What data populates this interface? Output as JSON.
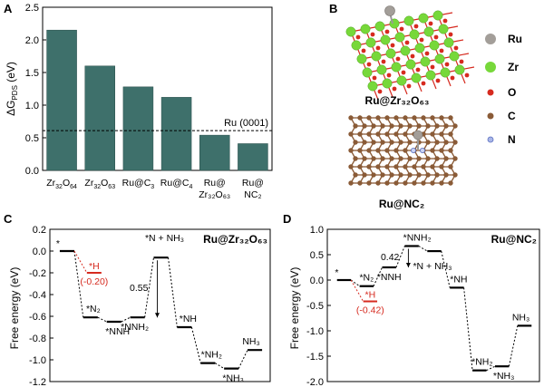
{
  "panels": {
    "A": {
      "label": "A",
      "chart_data": {
        "type": "bar",
        "ylabel_main": "ΔG",
        "ylabel_sub": "PDS",
        "ylabel_unit": " (eV)",
        "ylim": [
          0,
          2.5
        ],
        "yticks": [
          "0.0",
          "0.5",
          "1.0",
          "1.5",
          "2.0",
          "2.5"
        ],
        "bar_color": "#3e706b",
        "categories": [
          {
            "line1": "Zr",
            "s1": "32",
            "m1": "O",
            "s2": "64",
            "line2": ""
          },
          {
            "line1": "Zr",
            "s1": "32",
            "m1": "O",
            "s2": "63",
            "line2": ""
          },
          {
            "line1": "Ru@C",
            "s1": "3",
            "m1": "",
            "s2": "",
            "line2": ""
          },
          {
            "line1": "Ru@C",
            "s1": "4",
            "m1": "",
            "s2": "",
            "line2": ""
          },
          {
            "line1": "Ru@",
            "s1": "",
            "m1": "",
            "s2": "",
            "line2": "Zr₃₂O₆₃"
          },
          {
            "line1": "Ru@",
            "s1": "",
            "m1": "",
            "s2": "",
            "line2": "NC₂"
          }
        ],
        "values": [
          2.15,
          1.6,
          1.28,
          1.12,
          0.54,
          0.41
        ],
        "reference_line": {
          "value": 0.61,
          "label": "Ru (0001)"
        }
      }
    },
    "B": {
      "label": "B",
      "structure_top_label": "Ru@Zr₃₂O₆₃",
      "structure_bottom_label": "Ru@NC₂",
      "legend": [
        {
          "name": "Ru",
          "color": "#a39e99"
        },
        {
          "name": "Zr",
          "color": "#77d83a"
        },
        {
          "name": "O",
          "color": "#d62a1f"
        },
        {
          "name": "C",
          "color": "#8a5b37"
        },
        {
          "name": "N",
          "color": "#a9b6e8"
        }
      ]
    },
    "C": {
      "label": "C",
      "title": "Ru@Zr₃₂O₆₃",
      "chart_data": {
        "type": "line",
        "ylabel": "Free energy (eV)",
        "ylim": [
          -1.2,
          0.2
        ],
        "yticks": [
          "-1.2",
          "-1.0",
          "-0.8",
          "-0.6",
          "-0.4",
          "-0.2",
          "0.0",
          "0.2"
        ],
        "steps": [
          {
            "x": 0,
            "y": 0.0,
            "label": "*"
          },
          {
            "x": 1,
            "y": -0.61,
            "label": "*N₂"
          },
          {
            "x": 2,
            "y": -0.65,
            "label": "*NNH"
          },
          {
            "x": 3,
            "y": -0.61,
            "label": "*NNH₂"
          },
          {
            "x": 4,
            "y": -0.06,
            "label": "*N + NH₃"
          },
          {
            "x": 5,
            "y": -0.7,
            "label": "*NH"
          },
          {
            "x": 6,
            "y": -1.03,
            "label": "*NH₂"
          },
          {
            "x": 7,
            "y": -1.08,
            "label": "*NH₃"
          },
          {
            "x": 8,
            "y": -0.91,
            "label": "NH₃"
          }
        ],
        "side_state": {
          "x": 1,
          "y": -0.2,
          "label": "*H",
          "value_label": "(-0.20)",
          "color": "#d62a1f"
        },
        "barrier": {
          "from": 3,
          "to": 4,
          "value": "0.55"
        }
      }
    },
    "D": {
      "label": "D",
      "title": "Ru@NC₂",
      "chart_data": {
        "type": "line",
        "ylabel": "Free energy (eV)",
        "ylim": [
          -2.0,
          1.0
        ],
        "yticks": [
          "-2.0",
          "-1.5",
          "-1.0",
          "-0.5",
          "0.0",
          "0.5",
          "1.0"
        ],
        "steps": [
          {
            "x": 0,
            "y": 0.0,
            "label": "*"
          },
          {
            "x": 1,
            "y": -0.12,
            "label": "*N₂"
          },
          {
            "x": 2,
            "y": 0.25,
            "label": "*NNH"
          },
          {
            "x": 3,
            "y": 0.67,
            "label": "*NNH₂"
          },
          {
            "x": 4,
            "y": 0.57,
            "label": "*N + NH₃"
          },
          {
            "x": 5,
            "y": -0.15,
            "label": "*NH"
          },
          {
            "x": 6,
            "y": -1.78,
            "label": "*NH₂"
          },
          {
            "x": 7,
            "y": -1.7,
            "label": "*NH₃"
          },
          {
            "x": 8,
            "y": -0.9,
            "label": "NH₃"
          }
        ],
        "side_state": {
          "x": 1,
          "y": -0.42,
          "label": "*H",
          "value_label": "(-0.42)",
          "color": "#d62a1f"
        },
        "barrier": {
          "from": 2,
          "to": 3,
          "value": "0.42"
        }
      }
    }
  }
}
